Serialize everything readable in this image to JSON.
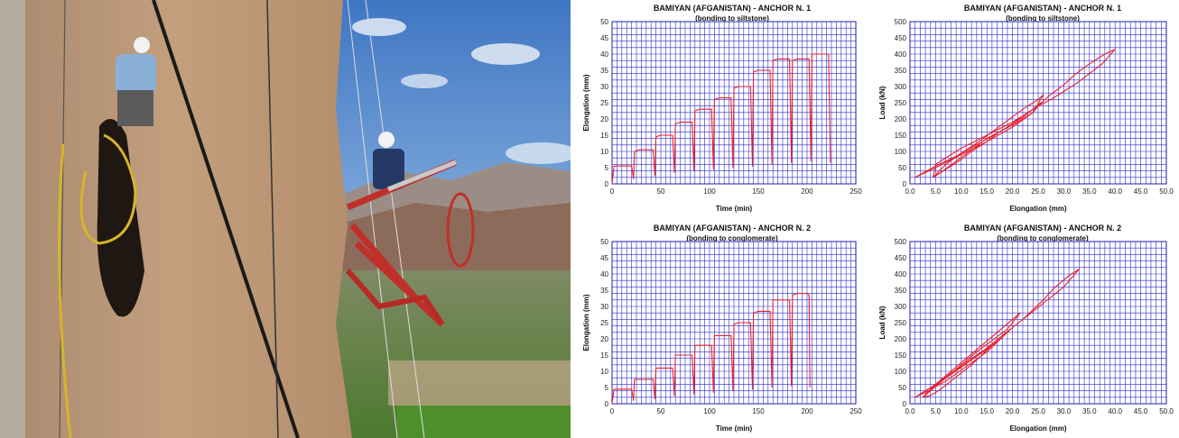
{
  "photo": {
    "description_icon": "photo-icon"
  },
  "chart_data": [
    {
      "type": "line",
      "title": "BAMIYAN (AFGANISTAN) -  ANCHOR N. 1",
      "subtitle": "(bonding to siltstone)",
      "xlabel": "Time   (min)",
      "ylabel": "Elongation   (mm)",
      "xlim": [
        0,
        250
      ],
      "ylim": [
        0,
        50
      ],
      "xticks": [
        "0",
        "50",
        "100",
        "150",
        "200",
        "250"
      ],
      "yticks": [
        "0",
        "5",
        "10",
        "15",
        "20",
        "25",
        "30",
        "35",
        "40",
        "45",
        "50"
      ],
      "grid": true,
      "series": [
        {
          "color": "#e8202a",
          "x": [
            0,
            2,
            20,
            22,
            23,
            28,
            42,
            44,
            45,
            50,
            62,
            64,
            65,
            70,
            82,
            84,
            85,
            90,
            102,
            104,
            105,
            110,
            122,
            124,
            125,
            130,
            142,
            144,
            145,
            150,
            162,
            164,
            165,
            170,
            182,
            184,
            185,
            190,
            202,
            204,
            205,
            210,
            222,
            224
          ],
          "y": [
            0,
            5.5,
            5.5,
            1.5,
            10,
            10.5,
            10.5,
            2.5,
            14.5,
            15,
            15,
            3.5,
            18.5,
            19,
            19,
            4,
            22.5,
            23,
            23,
            4.5,
            26,
            26.5,
            26.5,
            5,
            29.5,
            30,
            30,
            5.5,
            34.5,
            35,
            35,
            6,
            38,
            38.5,
            38.5,
            6.5,
            38,
            38.5,
            38.5,
            7,
            40,
            40,
            40,
            6.5
          ]
        }
      ]
    },
    {
      "type": "line",
      "title": "BAMIYAN (AFGANISTAN) -  ANCHOR N. 1",
      "subtitle": "(bonding to siltstone)",
      "xlabel": "Elongation    (mm)",
      "ylabel": "Load  (kN)",
      "xlim": [
        0,
        50
      ],
      "ylim": [
        0,
        500
      ],
      "xticks": [
        "0.0",
        "5.0",
        "10.0",
        "15.0",
        "20.0",
        "25.0",
        "30.0",
        "35.0",
        "40.0",
        "45.0",
        "50.0"
      ],
      "yticks": [
        "0",
        "50",
        "100",
        "150",
        "200",
        "250",
        "300",
        "350",
        "400",
        "450",
        "500"
      ],
      "grid": true,
      "series": [
        {
          "color": "#e8202a",
          "x": [
            4.5,
            5,
            8,
            10,
            12.5,
            15,
            17.5,
            20,
            22.5,
            25,
            27.5,
            30,
            32.5,
            35,
            37.5,
            40,
            38,
            35,
            32,
            30,
            27,
            25,
            22,
            20,
            17,
            15,
            12,
            10,
            7,
            5,
            4.5
          ],
          "y": [
            20,
            60,
            90,
            110,
            130,
            150,
            170,
            190,
            215,
            240,
            260,
            285,
            310,
            340,
            370,
            415,
            400,
            370,
            335,
            305,
            270,
            240,
            210,
            185,
            155,
            130,
            100,
            75,
            45,
            25,
            20
          ]
        },
        {
          "color": "#e8202a",
          "x": [
            4.5,
            7,
            10,
            13,
            16,
            19,
            22,
            25,
            26,
            24,
            21,
            18,
            15,
            12,
            9,
            6,
            4.5
          ],
          "y": [
            20,
            60,
            95,
            125,
            160,
            195,
            230,
            260,
            275,
            220,
            190,
            165,
            140,
            105,
            70,
            35,
            20
          ]
        },
        {
          "color": "#e8202a",
          "x": [
            1,
            5,
            10,
            15,
            20,
            24,
            25.5,
            22,
            18,
            13,
            9,
            5,
            1
          ],
          "y": [
            20,
            50,
            90,
            130,
            175,
            220,
            250,
            205,
            165,
            120,
            85,
            55,
            20
          ]
        }
      ]
    },
    {
      "type": "line",
      "title": "BAMIYAN (AFGANISTAN) -  ANCHOR N. 2",
      "subtitle": "(bonding to conglomerate)",
      "xlabel": "Time   (min)",
      "ylabel": "Elongation   (mm)",
      "xlim": [
        0,
        250
      ],
      "ylim": [
        0,
        50
      ],
      "xticks": [
        "0",
        "50",
        "100",
        "150",
        "200",
        "250"
      ],
      "yticks": [
        "0",
        "5",
        "10",
        "15",
        "20",
        "25",
        "30",
        "35",
        "40",
        "45",
        "50"
      ],
      "grid": true,
      "series": [
        {
          "color": "#e8202a",
          "x": [
            0,
            2,
            20,
            22,
            23,
            28,
            42,
            44,
            45,
            50,
            62,
            64,
            65,
            70,
            82,
            84,
            85,
            90,
            102,
            104,
            105,
            110,
            122,
            124,
            125,
            130,
            142,
            144,
            145,
            150,
            162,
            164,
            165,
            170,
            182,
            184,
            185,
            190,
            200,
            202,
            203
          ],
          "y": [
            0,
            4.5,
            4.5,
            1,
            7.5,
            7.5,
            7.5,
            1.5,
            11,
            11,
            11,
            2.5,
            15,
            15,
            15,
            3,
            18,
            18,
            18,
            3.5,
            21,
            21,
            21,
            4,
            24.5,
            25,
            25,
            4.5,
            28,
            28.5,
            28.5,
            5,
            32,
            32,
            32,
            5.5,
            33.5,
            34,
            34,
            33.5,
            5
          ]
        }
      ]
    },
    {
      "type": "line",
      "title": "BAMIYAN (AFGANISTAN) -  ANCHOR N. 2",
      "subtitle": "(bonding to conglomerate)",
      "xlabel": "Elongation    (mm)",
      "ylabel": "Load  (kN)",
      "xlim": [
        0,
        50
      ],
      "ylim": [
        0,
        500
      ],
      "xticks": [
        "0.0",
        "5.0",
        "10.0",
        "15.0",
        "20.0",
        "25.0",
        "30.0",
        "35.0",
        "40.0",
        "45.0",
        "50.0"
      ],
      "yticks": [
        "0",
        "50",
        "100",
        "150",
        "200",
        "250",
        "300",
        "350",
        "400",
        "450",
        "500"
      ],
      "grid": true,
      "series": [
        {
          "color": "#e8202a",
          "x": [
            2.5,
            4,
            6,
            8,
            10,
            12,
            14,
            16,
            18,
            20,
            22,
            24,
            26,
            28,
            30,
            33,
            31,
            28,
            26,
            24,
            22,
            20,
            18,
            16,
            14,
            12,
            10,
            8,
            6,
            4,
            2.5
          ],
          "y": [
            20,
            45,
            70,
            95,
            115,
            140,
            160,
            185,
            210,
            235,
            260,
            285,
            310,
            335,
            360,
            415,
            395,
            355,
            320,
            290,
            260,
            235,
            205,
            180,
            150,
            120,
            95,
            70,
            45,
            25,
            20
          ]
        },
        {
          "color": "#e8202a",
          "x": [
            2.5,
            5,
            8,
            11,
            14,
            17,
            20,
            21.5,
            19,
            16,
            13,
            10,
            7,
            4,
            2.5
          ],
          "y": [
            20,
            60,
            100,
            140,
            180,
            220,
            260,
            280,
            230,
            195,
            160,
            120,
            80,
            40,
            20
          ]
        },
        {
          "color": "#e8202a",
          "x": [
            1,
            4,
            8,
            12,
            16,
            18,
            15,
            11,
            7,
            3,
            1
          ],
          "y": [
            20,
            50,
            90,
            135,
            180,
            205,
            160,
            115,
            70,
            35,
            20
          ]
        }
      ]
    }
  ]
}
